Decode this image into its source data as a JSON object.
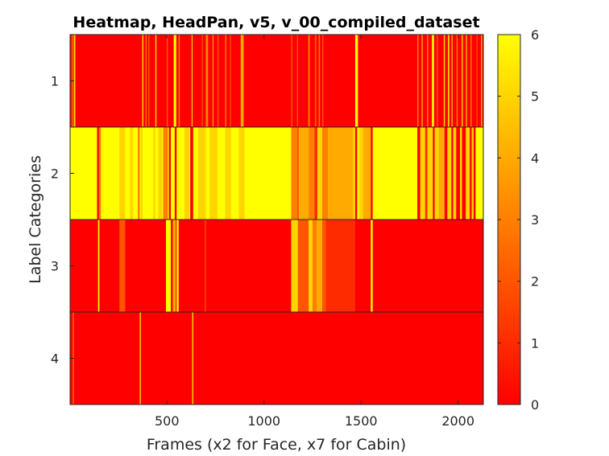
{
  "chart_data": {
    "type": "heatmap",
    "title": "Heatmap, HeadPan, v5, v_00_compiled_dataset",
    "xlabel": "Frames (x2 for Face, x7 for Cabin)",
    "ylabel": "Label Categories",
    "xlim": [
      1,
      2130
    ],
    "xticks": [
      500,
      1000,
      1500,
      2000
    ],
    "xtick_labels": [
      "500",
      "1000",
      "1500",
      "2000"
    ],
    "rows": [
      1,
      2,
      3,
      4
    ],
    "row_labels": [
      "1",
      "2",
      "3",
      "4"
    ],
    "colorbar": {
      "min": 0,
      "max": 6,
      "ticks": [
        0,
        1,
        2,
        3,
        4,
        5,
        6
      ],
      "tick_labels": [
        "0",
        "1",
        "2",
        "3",
        "4",
        "5",
        "6"
      ],
      "colormap": "autumn",
      "low_color": "#ff0000",
      "high_color": "#ffff00"
    },
    "row_background": [
      0,
      6,
      0,
      0
    ],
    "segments": [
      [
        [
          10,
          15,
          3
        ],
        [
          20,
          28,
          5
        ],
        [
          373,
          378,
          6
        ],
        [
          390,
          393,
          4
        ],
        [
          404,
          410,
          2
        ],
        [
          440,
          446,
          5
        ],
        [
          500,
          504,
          3
        ],
        [
          535,
          548,
          6
        ],
        [
          560,
          566,
          3
        ],
        [
          627,
          632,
          5
        ],
        [
          680,
          685,
          2
        ],
        [
          700,
          712,
          3
        ],
        [
          735,
          740,
          4
        ],
        [
          760,
          766,
          2
        ],
        [
          800,
          806,
          3
        ],
        [
          825,
          830,
          2
        ],
        [
          880,
          895,
          4
        ],
        [
          1140,
          1146,
          2
        ],
        [
          1170,
          1175,
          2
        ],
        [
          1228,
          1236,
          3
        ],
        [
          1262,
          1270,
          2
        ],
        [
          1282,
          1288,
          3
        ],
        [
          1300,
          1306,
          2
        ],
        [
          1470,
          1484,
          6
        ],
        [
          1790,
          1796,
          3
        ],
        [
          1812,
          1818,
          4
        ],
        [
          1840,
          1846,
          3
        ],
        [
          1865,
          1876,
          6
        ],
        [
          1890,
          1896,
          2
        ],
        [
          1926,
          1932,
          5
        ],
        [
          1948,
          1954,
          6
        ],
        [
          1966,
          1972,
          4
        ],
        [
          1992,
          1998,
          3
        ],
        [
          2018,
          2024,
          5
        ],
        [
          2040,
          2046,
          4
        ],
        [
          2064,
          2070,
          3
        ],
        [
          2095,
          2100,
          2
        ],
        [
          2118,
          2124,
          4
        ]
      ],
      [
        [
          140,
          150,
          0
        ],
        [
          150,
          160,
          3
        ],
        [
          255,
          285,
          5
        ],
        [
          310,
          325,
          5
        ],
        [
          350,
          360,
          3
        ],
        [
          368,
          372,
          4
        ],
        [
          430,
          440,
          5
        ],
        [
          455,
          475,
          5
        ],
        [
          480,
          505,
          3
        ],
        [
          510,
          520,
          0
        ],
        [
          540,
          550,
          0
        ],
        [
          590,
          615,
          5
        ],
        [
          620,
          635,
          0
        ],
        [
          660,
          700,
          5
        ],
        [
          720,
          760,
          5
        ],
        [
          800,
          830,
          5
        ],
        [
          870,
          900,
          5
        ],
        [
          1140,
          1170,
          3
        ],
        [
          1170,
          1180,
          2
        ],
        [
          1180,
          1230,
          4
        ],
        [
          1230,
          1260,
          3
        ],
        [
          1260,
          1275,
          1
        ],
        [
          1275,
          1300,
          5
        ],
        [
          1300,
          1330,
          3
        ],
        [
          1330,
          1360,
          4
        ],
        [
          1360,
          1460,
          4
        ],
        [
          1460,
          1470,
          5
        ],
        [
          1470,
          1480,
          0
        ],
        [
          1490,
          1510,
          5
        ],
        [
          1510,
          1550,
          4
        ],
        [
          1550,
          1560,
          0
        ],
        [
          1790,
          1805,
          0
        ],
        [
          1805,
          1830,
          5
        ],
        [
          1830,
          1842,
          1
        ],
        [
          1842,
          1870,
          5
        ],
        [
          1870,
          1880,
          0
        ],
        [
          1880,
          1900,
          5
        ],
        [
          1900,
          1930,
          4
        ],
        [
          1930,
          1945,
          0
        ],
        [
          1945,
          1965,
          5
        ],
        [
          1965,
          1975,
          0
        ],
        [
          1975,
          1990,
          5
        ],
        [
          1990,
          2010,
          0
        ],
        [
          2010,
          2020,
          5
        ],
        [
          2020,
          2040,
          0
        ],
        [
          2040,
          2060,
          5
        ],
        [
          2060,
          2070,
          0
        ],
        [
          2070,
          2080,
          5
        ],
        [
          2080,
          2090,
          0
        ]
      ],
      [
        [
          145,
          152,
          6
        ],
        [
          255,
          285,
          2
        ],
        [
          495,
          520,
          6
        ],
        [
          530,
          545,
          4
        ],
        [
          550,
          560,
          6
        ],
        [
          695,
          700,
          2
        ],
        [
          1140,
          1175,
          5
        ],
        [
          1175,
          1230,
          2
        ],
        [
          1230,
          1250,
          5
        ],
        [
          1250,
          1270,
          3
        ],
        [
          1270,
          1300,
          4
        ],
        [
          1300,
          1320,
          2
        ],
        [
          1320,
          1470,
          1
        ],
        [
          1550,
          1560,
          6
        ]
      ],
      [
        [
          15,
          20,
          3
        ],
        [
          360,
          365,
          6
        ],
        [
          630,
          636,
          5
        ]
      ]
    ]
  }
}
